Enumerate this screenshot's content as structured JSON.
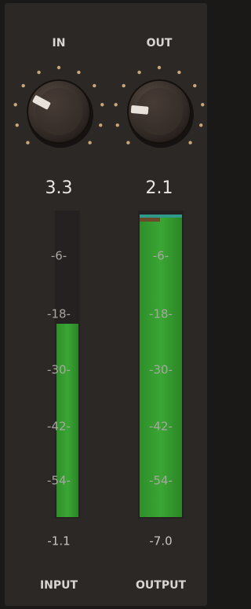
{
  "knobs": [
    {
      "label": "IN",
      "value": "3.3"
    },
    {
      "label": "OUT",
      "value": "2.1"
    }
  ],
  "meter_scale": [
    "-6-",
    "-18-",
    "-30-",
    "-42-",
    "-54-"
  ],
  "meters": [
    {
      "peak": "-1.1",
      "label": "INPUT"
    },
    {
      "peak": "-7.0",
      "label": "OUTPUT"
    }
  ]
}
